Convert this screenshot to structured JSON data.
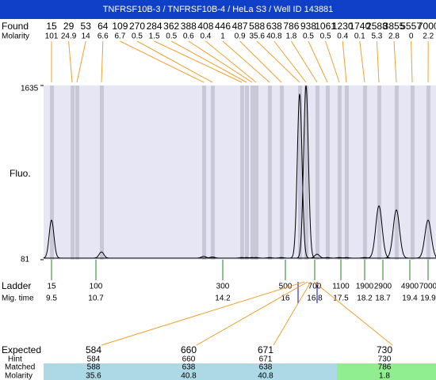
{
  "header": {
    "title": "TNFRSF10B-3 / TNFRSF10B-4 / HeLa S3 / Well ID 143881"
  },
  "found": {
    "label": "Found",
    "molarity_label": "Molarity",
    "sizes": [
      15,
      29,
      53,
      64,
      109,
      270,
      284,
      362,
      388,
      408,
      446,
      487,
      588,
      638,
      786,
      938,
      1061,
      1230,
      1740,
      2588,
      3855,
      5557,
      7000
    ],
    "molarity": [
      101,
      24.9,
      14,
      6.6,
      6.7,
      0.5,
      1.5,
      0.5,
      0.6,
      0.4,
      1,
      0.9,
      35.6,
      40.8,
      1.8,
      0.5,
      0.5,
      0.4,
      0.1,
      5.3,
      2.8,
      0,
      2.2
    ]
  },
  "electropherogram": {
    "y_label": "Fluo.",
    "ylim": [
      81,
      1635
    ],
    "yticks": [
      81,
      1635
    ],
    "baseline": 95,
    "peak_heights": [
      434,
      95,
      95,
      150,
      110,
      105,
      100,
      100,
      100,
      100,
      100,
      100,
      1560,
      1635,
      130,
      100,
      100,
      100,
      100,
      561,
      525,
      95,
      434
    ]
  },
  "ladder": {
    "label": "Ladder",
    "time_label": "Mig. time",
    "sizes": [
      15,
      100,
      300,
      500,
      700,
      1100,
      1900,
      2900,
      4900,
      7000
    ],
    "times": [
      9.5,
      10.7,
      14.2,
      16,
      16.8,
      17.5,
      18.2,
      18.7,
      19.4,
      19.9
    ]
  },
  "expected": {
    "label": "Expected",
    "hint_label": "Hint",
    "matched_label": "Matched",
    "molarity_label": "Molarity",
    "expected": [
      584,
      660,
      671,
      730
    ],
    "hint": [
      584,
      660,
      671,
      730
    ],
    "matched": [
      588,
      638,
      638,
      786
    ],
    "molarity": [
      35.6,
      40.8,
      40.8,
      1.8
    ]
  }
}
